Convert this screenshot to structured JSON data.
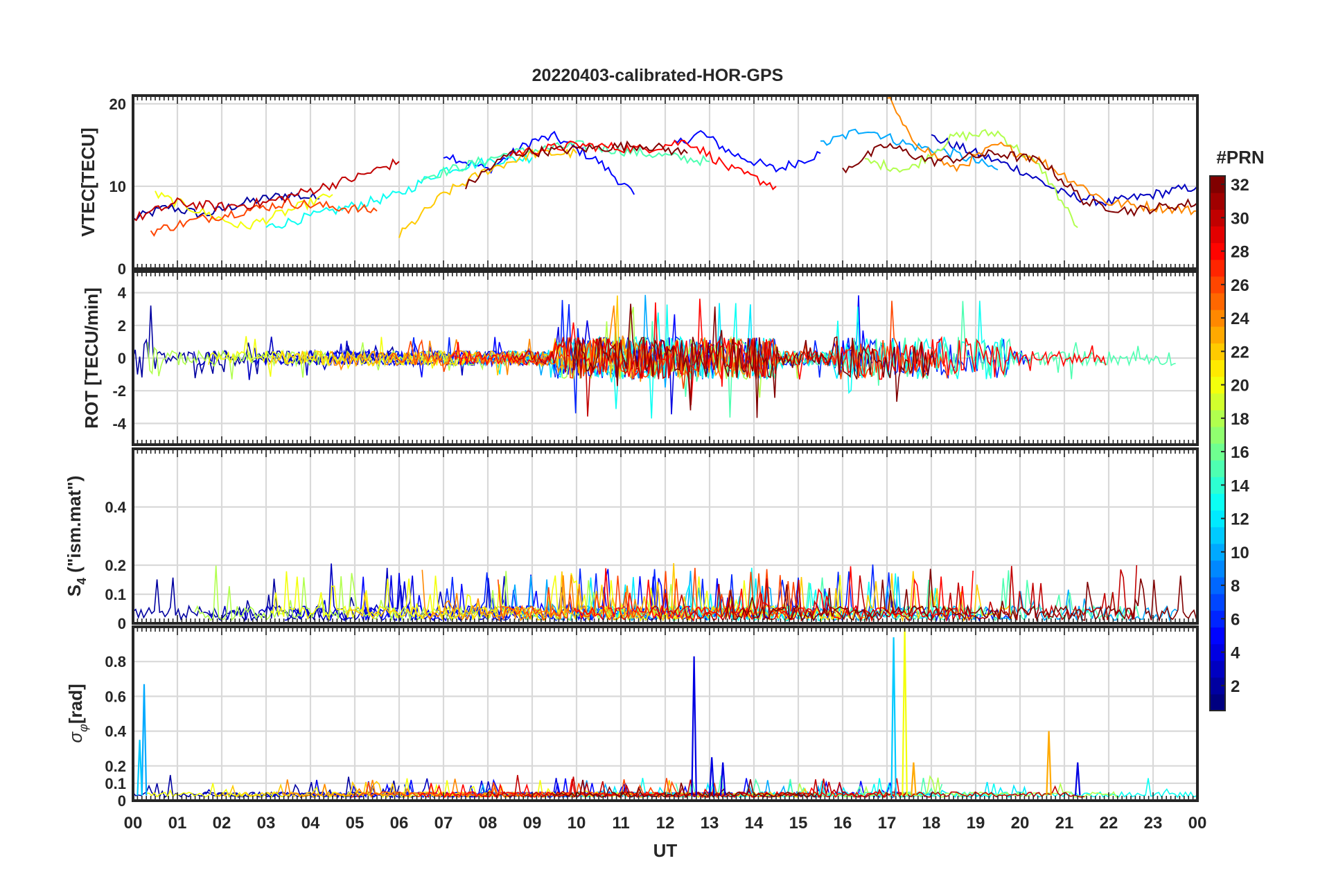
{
  "chart_data": {
    "type": "line",
    "title": "20220403-calibrated-HOR-GPS",
    "xlabel": "UT",
    "x_tick_labels": [
      "00",
      "01",
      "02",
      "03",
      "04",
      "05",
      "06",
      "07",
      "08",
      "09",
      "10",
      "11",
      "12",
      "13",
      "14",
      "15",
      "16",
      "17",
      "18",
      "19",
      "20",
      "21",
      "22",
      "23",
      "00"
    ],
    "xlim_hours": [
      0,
      24
    ],
    "colorbar": {
      "label": "#PRN",
      "range": [
        1,
        32
      ],
      "ticks": [
        2,
        4,
        6,
        8,
        10,
        12,
        14,
        16,
        18,
        20,
        22,
        24,
        26,
        28,
        30,
        32
      ],
      "colormap": "jet"
    },
    "panels": [
      {
        "id": "vtec",
        "ylabel": "VTEC[TECU]",
        "ylim": [
          0,
          21
        ],
        "yticks": [
          0,
          10,
          20
        ],
        "series": [
          {
            "prn": 2,
            "x": [
              0,
              0.8,
              1.6,
              2.5,
              3.5,
              4.2
            ],
            "y": [
              6,
              7.5,
              6.5,
              8,
              9,
              8.5
            ]
          },
          {
            "prn": 5,
            "x": [
              7,
              8,
              9,
              9.5,
              10.5,
              11.3
            ],
            "y": [
              14,
              12,
              15.5,
              16,
              13,
              9
            ]
          },
          {
            "prn": 5,
            "x": [
              12.2,
              12.8,
              13.5,
              14.5,
              15.5
            ],
            "y": [
              15,
              16.5,
              14,
              12,
              14
            ]
          },
          {
            "prn": 3,
            "x": [
              18,
              19,
              20,
              21,
              22,
              23,
              24
            ],
            "y": [
              16,
              14,
              12,
              9,
              8,
              9,
              10
            ]
          },
          {
            "prn": 10,
            "x": [
              15.5,
              16.5,
              17.5,
              18.5,
              19.5
            ],
            "y": [
              15,
              17,
              15,
              14,
              12
            ]
          },
          {
            "prn": 13,
            "x": [
              3,
              4.5,
              6,
              7,
              8,
              9
            ],
            "y": [
              5,
              7,
              9,
              12,
              13,
              13.5
            ]
          },
          {
            "prn": 15,
            "x": [
              6.5,
              7.5,
              8.5,
              10,
              11.5,
              13
            ],
            "y": [
              11,
              12.5,
              14,
              15,
              14,
              13
            ]
          },
          {
            "prn": 18,
            "x": [
              16.5,
              17.5,
              18.5,
              19.5,
              20.5,
              21.3
            ],
            "y": [
              13,
              12,
              16,
              16.5,
              12,
              5
            ]
          },
          {
            "prn": 20,
            "x": [
              0.5,
              1.5,
              2.5,
              3.5,
              4.5
            ],
            "y": [
              9,
              7,
              5,
              7,
              9
            ]
          },
          {
            "prn": 22,
            "x": [
              6,
              7,
              8,
              9,
              10
            ],
            "y": [
              4,
              9,
              12,
              14,
              14
            ]
          },
          {
            "prn": 24,
            "x": [
              17,
              17.5,
              18.5,
              19.5,
              20.5,
              22,
              24
            ],
            "y": [
              21,
              16,
              12,
              15,
              13,
              8,
              7
            ]
          },
          {
            "prn": 26,
            "x": [
              0.4,
              1.5,
              2.5,
              3.5,
              4.5,
              5.5
            ],
            "y": [
              4.5,
              6,
              7,
              8,
              7.5,
              7
            ]
          },
          {
            "prn": 28,
            "x": [
              8.5,
              10,
              11.5,
              12.5,
              13.5,
              14.5
            ],
            "y": [
              14,
              15,
              14.5,
              15.5,
              12,
              10
            ]
          },
          {
            "prn": 30,
            "x": [
              0,
              1,
              2,
              3,
              4,
              5,
              6
            ],
            "y": [
              6,
              8,
              7.5,
              8,
              9.5,
              11,
              13
            ]
          },
          {
            "prn": 32,
            "x": [
              7.5,
              8.5,
              10,
              11.5,
              12.5
            ],
            "y": [
              10,
              14,
              14.5,
              15,
              14
            ]
          },
          {
            "prn": 32,
            "x": [
              16,
              17,
              18,
              19.5,
              20.5,
              21.5,
              22.5,
              24
            ],
            "y": [
              12,
              15,
              13,
              14,
              13,
              8,
              7,
              8
            ]
          }
        ]
      },
      {
        "id": "rot",
        "ylabel": "ROT [TECU/min]",
        "ylim": [
          -5.3,
          5.3
        ],
        "yticks": [
          -4,
          -2,
          0,
          2,
          4
        ]
      },
      {
        "id": "s4",
        "ylabel": "S4 (\"ism.mat\")",
        "ylabel_main": "S",
        "ylabel_sub": "4",
        "ylabel_rest": " (\"ism.mat\")",
        "ylim": [
          0,
          0.6
        ],
        "yticks": [
          0,
          0.1,
          0.2,
          0.4
        ],
        "ytick_labels": [
          "0",
          "0.1",
          "0.2",
          "0.4"
        ]
      },
      {
        "id": "sigphi",
        "ylabel": "σφ[rad]",
        "ylabel_main": "σ",
        "ylabel_sub": "φ",
        "ylabel_rest": "[rad]",
        "ylim": [
          0,
          1.0
        ],
        "yticks": [
          0,
          0.1,
          0.2,
          0.4,
          0.6,
          0.8
        ],
        "ytick_labels": [
          "0",
          "0.1",
          "0.2",
          "0.4",
          "0.6",
          "0.8"
        ],
        "spikes": [
          {
            "prn": 10,
            "x": 0.25,
            "y": 0.67
          },
          {
            "prn": 11,
            "x": 0.15,
            "y": 0.35
          },
          {
            "prn": 4,
            "x": 12.65,
            "y": 0.83
          },
          {
            "prn": 4,
            "x": 13.05,
            "y": 0.25
          },
          {
            "prn": 4,
            "x": 13.3,
            "y": 0.22
          },
          {
            "prn": 11,
            "x": 17.15,
            "y": 0.94
          },
          {
            "prn": 20,
            "x": 17.4,
            "y": 1.0
          },
          {
            "prn": 23,
            "x": 17.6,
            "y": 0.22
          },
          {
            "prn": 23,
            "x": 20.65,
            "y": 0.4
          },
          {
            "prn": 4,
            "x": 21.3,
            "y": 0.22
          }
        ]
      }
    ]
  }
}
